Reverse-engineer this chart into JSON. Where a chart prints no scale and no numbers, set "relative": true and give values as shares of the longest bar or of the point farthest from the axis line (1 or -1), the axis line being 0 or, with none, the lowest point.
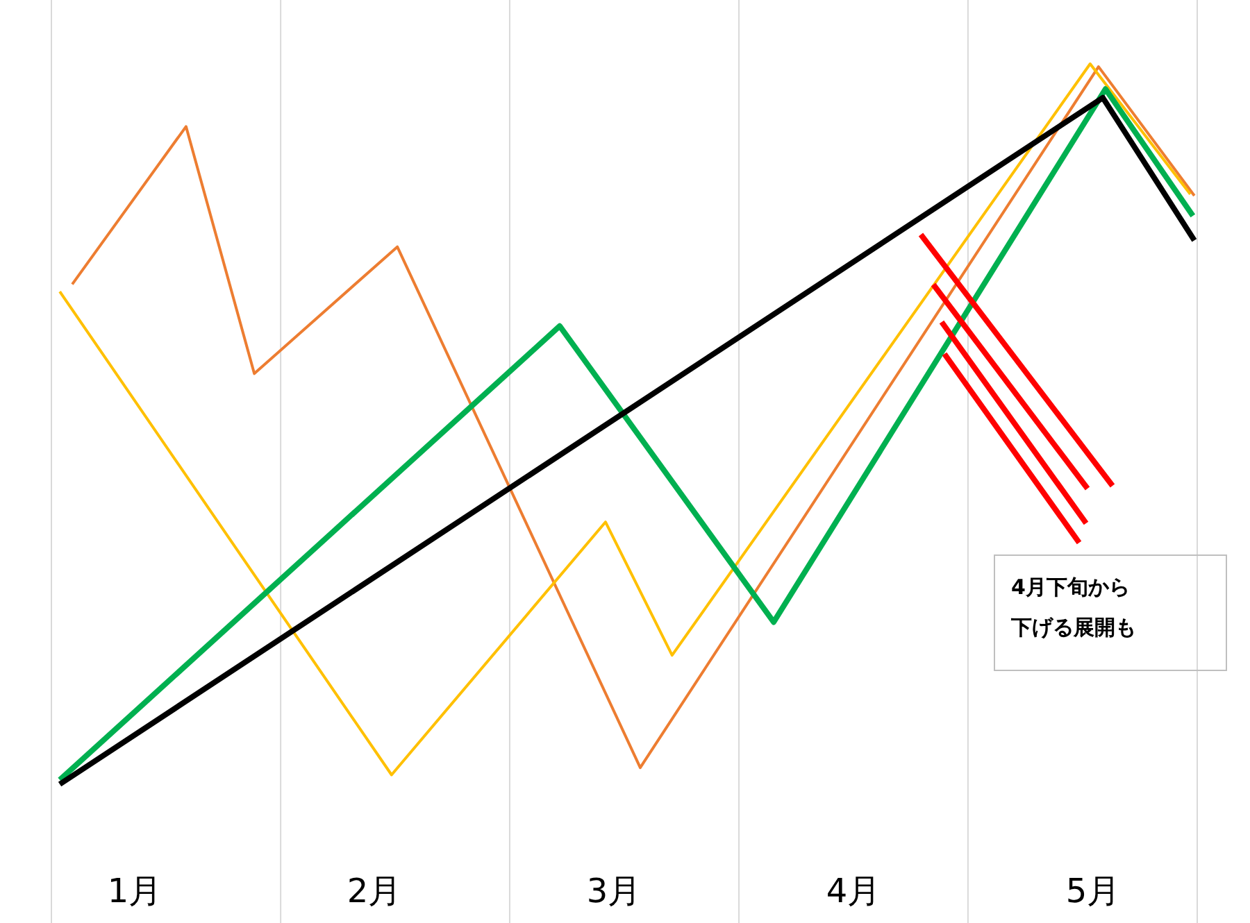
{
  "chart_data": {
    "type": "line",
    "relative": true,
    "grid": "x",
    "legend": false,
    "marker": "none",
    "line_style": "solid",
    "xlim": [
      0.652,
      5.435
    ],
    "xticks": [
      {
        "value": 0.652,
        "label": null
      },
      {
        "value": 1.609,
        "label": null
      },
      {
        "value": 2.565,
        "label": null
      },
      {
        "value": 3.522,
        "label": null
      },
      {
        "value": 4.478,
        "label": null
      },
      {
        "value": 5.435,
        "label": null
      },
      {
        "value": 1,
        "label": "1月"
      },
      {
        "value": 2,
        "label": "2月"
      },
      {
        "value": 3,
        "label": "3月"
      },
      {
        "value": 4,
        "label": "4月"
      },
      {
        "value": 5,
        "label": "5月"
      }
    ],
    "series": [
      {
        "color": "#ed7d31",
        "x": [
          0.739,
          1.214,
          1.499,
          2.096,
          3.11,
          5.023,
          5.423
        ],
        "values": [
          0.694,
          0.913,
          0.57,
          0.746,
          0.023,
          0.996,
          0.817
        ]
      },
      {
        "color": "#ffc000",
        "x": [
          0.687,
          2.072,
          2.965,
          3.243,
          4.988,
          5.406
        ],
        "values": [
          0.684,
          0.013,
          0.364,
          0.179,
          1.0,
          0.819
        ]
      },
      {
        "color": "#00b050",
        "x": [
          0.687,
          2.774,
          3.667,
          5.052,
          5.417
        ],
        "values": [
          0.006,
          0.636,
          0.225,
          0.965,
          0.789
        ]
      },
      {
        "color": "#000000",
        "x": [
          0.687,
          5.041,
          5.423
        ],
        "values": [
          0.0,
          0.953,
          0.755
        ]
      }
    ],
    "annotations": [
      "4月下旬から下げる展開も"
    ]
  }
}
